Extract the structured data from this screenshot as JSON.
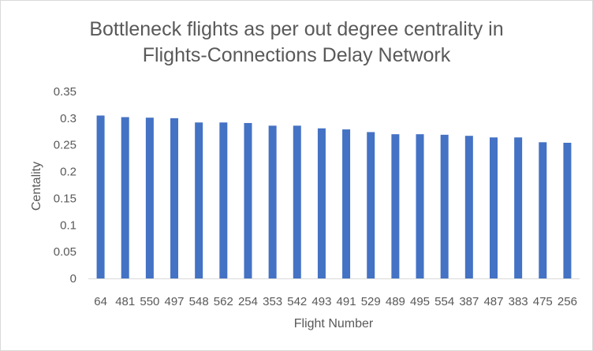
{
  "chart_data": {
    "type": "bar",
    "title_lines": [
      "Bottleneck flights as per out degree centrality in",
      "Flights-Connections Delay Network"
    ],
    "xlabel": "Flight Number",
    "ylabel": "Centality",
    "ylim": [
      0,
      0.35
    ],
    "yticks": [
      "0",
      "0.05",
      "0.1",
      "0.15",
      "0.2",
      "0.25",
      "0.3",
      "0.35"
    ],
    "grid": false,
    "legend": "none",
    "bar_color": "#4472c4",
    "categories": [
      "64",
      "481",
      "550",
      "497",
      "548",
      "562",
      "254",
      "353",
      "542",
      "493",
      "491",
      "529",
      "489",
      "495",
      "554",
      "387",
      "487",
      "383",
      "475",
      "256"
    ],
    "values": [
      0.305,
      0.302,
      0.301,
      0.3,
      0.292,
      0.292,
      0.291,
      0.286,
      0.286,
      0.281,
      0.279,
      0.274,
      0.27,
      0.27,
      0.269,
      0.267,
      0.264,
      0.264,
      0.255,
      0.254
    ]
  }
}
